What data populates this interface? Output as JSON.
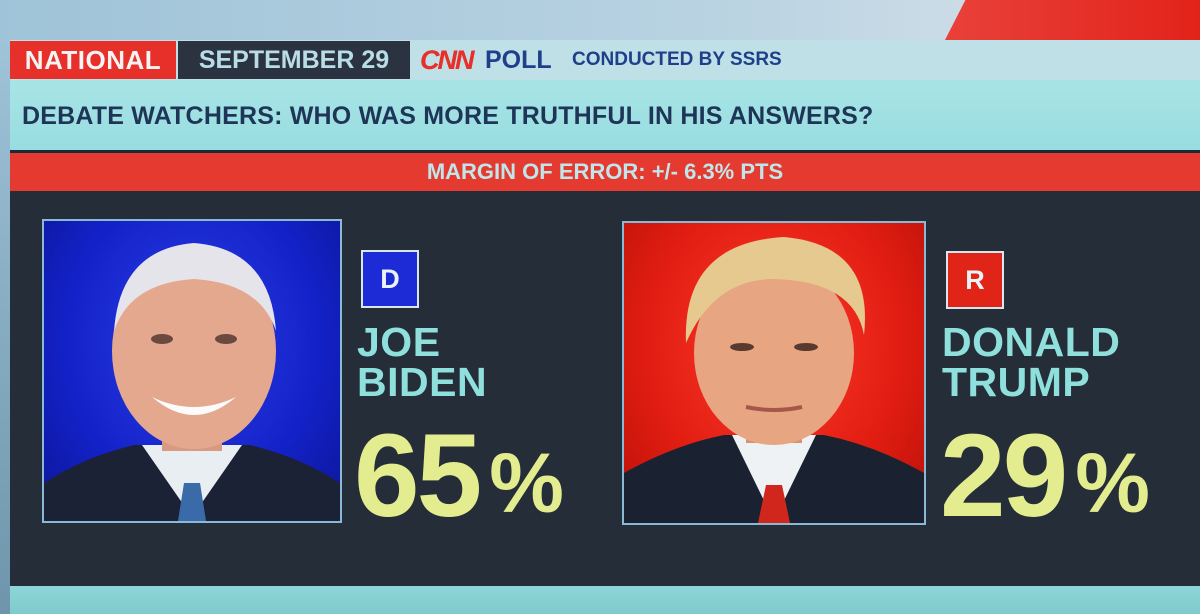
{
  "header": {
    "region": "NATIONAL",
    "date": "SEPTEMBER 29",
    "network_logo": "CNN",
    "poll_label": "POLL",
    "conducted_by": "CONDUCTED BY SSRS"
  },
  "title": "DEBATE WATCHERS: WHO WAS MORE TRUTHFUL IN HIS ANSWERS?",
  "margin_of_error": "MARGIN OF ERROR: +/- 6.3% PTS",
  "candidates": [
    {
      "party": "D",
      "name_line1": "JOE",
      "name_line2": "BIDEN",
      "value": "65",
      "unit": "%",
      "photo_background": "#1322c8"
    },
    {
      "party": "R",
      "name_line1": "DONALD",
      "name_line2": "TRUMP",
      "value": "29",
      "unit": "%",
      "photo_background": "#e11d12"
    }
  ],
  "colors": {
    "accent_red": "#e53a2f",
    "democrat_blue": "#1c2bd6",
    "republican_red": "#e02418",
    "name_teal": "#8fe0dc",
    "percent_yellow": "#e3ec8f",
    "panel_dark": "#242d38"
  }
}
